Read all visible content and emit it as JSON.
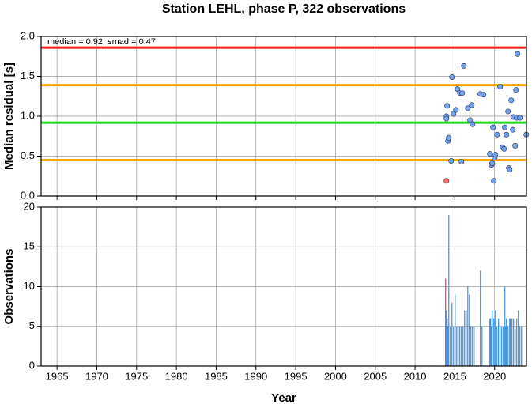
{
  "chart_data": [
    {
      "type": "scatter",
      "title": "Station LEHL, phase P, 322 observations",
      "y_label": "Median residual [s]",
      "annotation": "median = 0.92, smad = 0.47",
      "xlim": [
        1963,
        2024
      ],
      "xticks": [
        1965,
        1970,
        1975,
        1980,
        1985,
        1990,
        1995,
        2000,
        2005,
        2010,
        2015,
        2020
      ],
      "show_xtick_labels": false,
      "ylim": [
        0,
        2
      ],
      "yticks": [
        {
          "value": 0,
          "label": "0.0"
        },
        0.5,
        {
          "value": 1,
          "label": "1.0"
        },
        1.5,
        {
          "value": 2,
          "label": "2.0"
        }
      ],
      "grid": true,
      "hlines": [
        {
          "value": 1.86,
          "color": "#ff1a1a"
        },
        {
          "value": 1.39,
          "color": "#ffa500"
        },
        {
          "value": 0.92,
          "color": "#22dd22"
        },
        {
          "value": 0.45,
          "color": "#ffa500"
        }
      ],
      "series": [
        {
          "color": "#ff6b6b",
          "x": [
            2013.94
          ],
          "values": [
            0.19
          ]
        },
        {
          "color": "#6fa3f2",
          "x": [
            2013.94,
            2013.94,
            2014.04,
            2014.14,
            2014.24,
            2014.54,
            2014.64,
            2014.84,
            2015.14,
            2015.33,
            2015.63,
            2015.83,
            2015.93,
            2016.13,
            2016.63,
            2016.92,
            2017.12,
            2017.22,
            2018.21,
            2018.61,
            2019.4,
            2019.6,
            2019.7,
            2019.8,
            2019.9,
            2020.0,
            2020.1,
            2020.3,
            2020.69,
            2020.99,
            2021.19,
            2021.29,
            2021.49,
            2021.69,
            2021.79,
            2021.89,
            2022.09,
            2022.28,
            2022.38,
            2022.58,
            2022.68,
            2022.78,
            2022.88,
            2023.18,
            2023.98
          ],
          "values": [
            1.0,
            0.97,
            1.13,
            0.69,
            0.73,
            0.44,
            1.49,
            1.03,
            1.08,
            1.34,
            1.29,
            0.43,
            1.29,
            1.63,
            1.1,
            0.95,
            1.14,
            0.9,
            1.28,
            1.27,
            0.53,
            0.39,
            0.41,
            0.86,
            0.19,
            0.48,
            0.52,
            0.77,
            1.37,
            0.61,
            0.59,
            0.86,
            0.77,
            1.06,
            0.35,
            0.33,
            1.2,
            0.83,
            0.99,
            0.63,
            1.33,
            0.98,
            1.78,
            0.98,
            0.77
          ]
        }
      ]
    },
    {
      "type": "bar",
      "x_label": "Year",
      "y_label": "Observations",
      "xlim": [
        1963,
        2024
      ],
      "xticks": [
        1965,
        1970,
        1975,
        1980,
        1985,
        1990,
        1995,
        2000,
        2005,
        2010,
        2015,
        2020
      ],
      "show_xtick_labels": true,
      "ylim": [
        0,
        20
      ],
      "yticks": [
        0,
        5,
        10,
        15,
        20
      ],
      "grid": true,
      "series": [
        {
          "color": "#ff3030",
          "x": [
            2013.84
          ],
          "values": [
            11
          ]
        },
        {
          "color": "#3a8fe0",
          "x": [
            2013.94,
            2014.04,
            2014.14,
            2014.24,
            2014.44,
            2014.64,
            2014.84,
            2015.04,
            2015.24,
            2015.43,
            2015.63,
            2015.83,
            2016.03,
            2016.23,
            2016.43,
            2016.63,
            2016.82,
            2017.02,
            2017.22,
            2017.42,
            2018.21,
            2018.41,
            2019.4,
            2019.5,
            2019.6,
            2019.7,
            2019.9,
            2020.1,
            2020.3,
            2020.49,
            2020.69,
            2020.89,
            2021.09,
            2021.29,
            2021.39,
            2021.49,
            2021.69,
            2021.89,
            2021.99,
            2022.18,
            2022.38,
            2022.58,
            2022.78,
            2022.98,
            2023.18,
            2023.38
          ],
          "values": [
            7,
            6,
            5,
            19,
            5,
            8,
            5,
            9,
            5,
            5,
            5,
            5,
            5,
            7,
            7,
            10,
            9,
            5,
            5,
            5,
            12,
            5,
            6,
            6,
            5,
            7,
            6,
            7,
            5,
            6,
            5,
            5,
            5,
            10,
            5,
            6,
            5,
            6,
            6,
            6,
            6,
            5,
            6,
            7,
            5,
            5
          ]
        }
      ]
    }
  ]
}
